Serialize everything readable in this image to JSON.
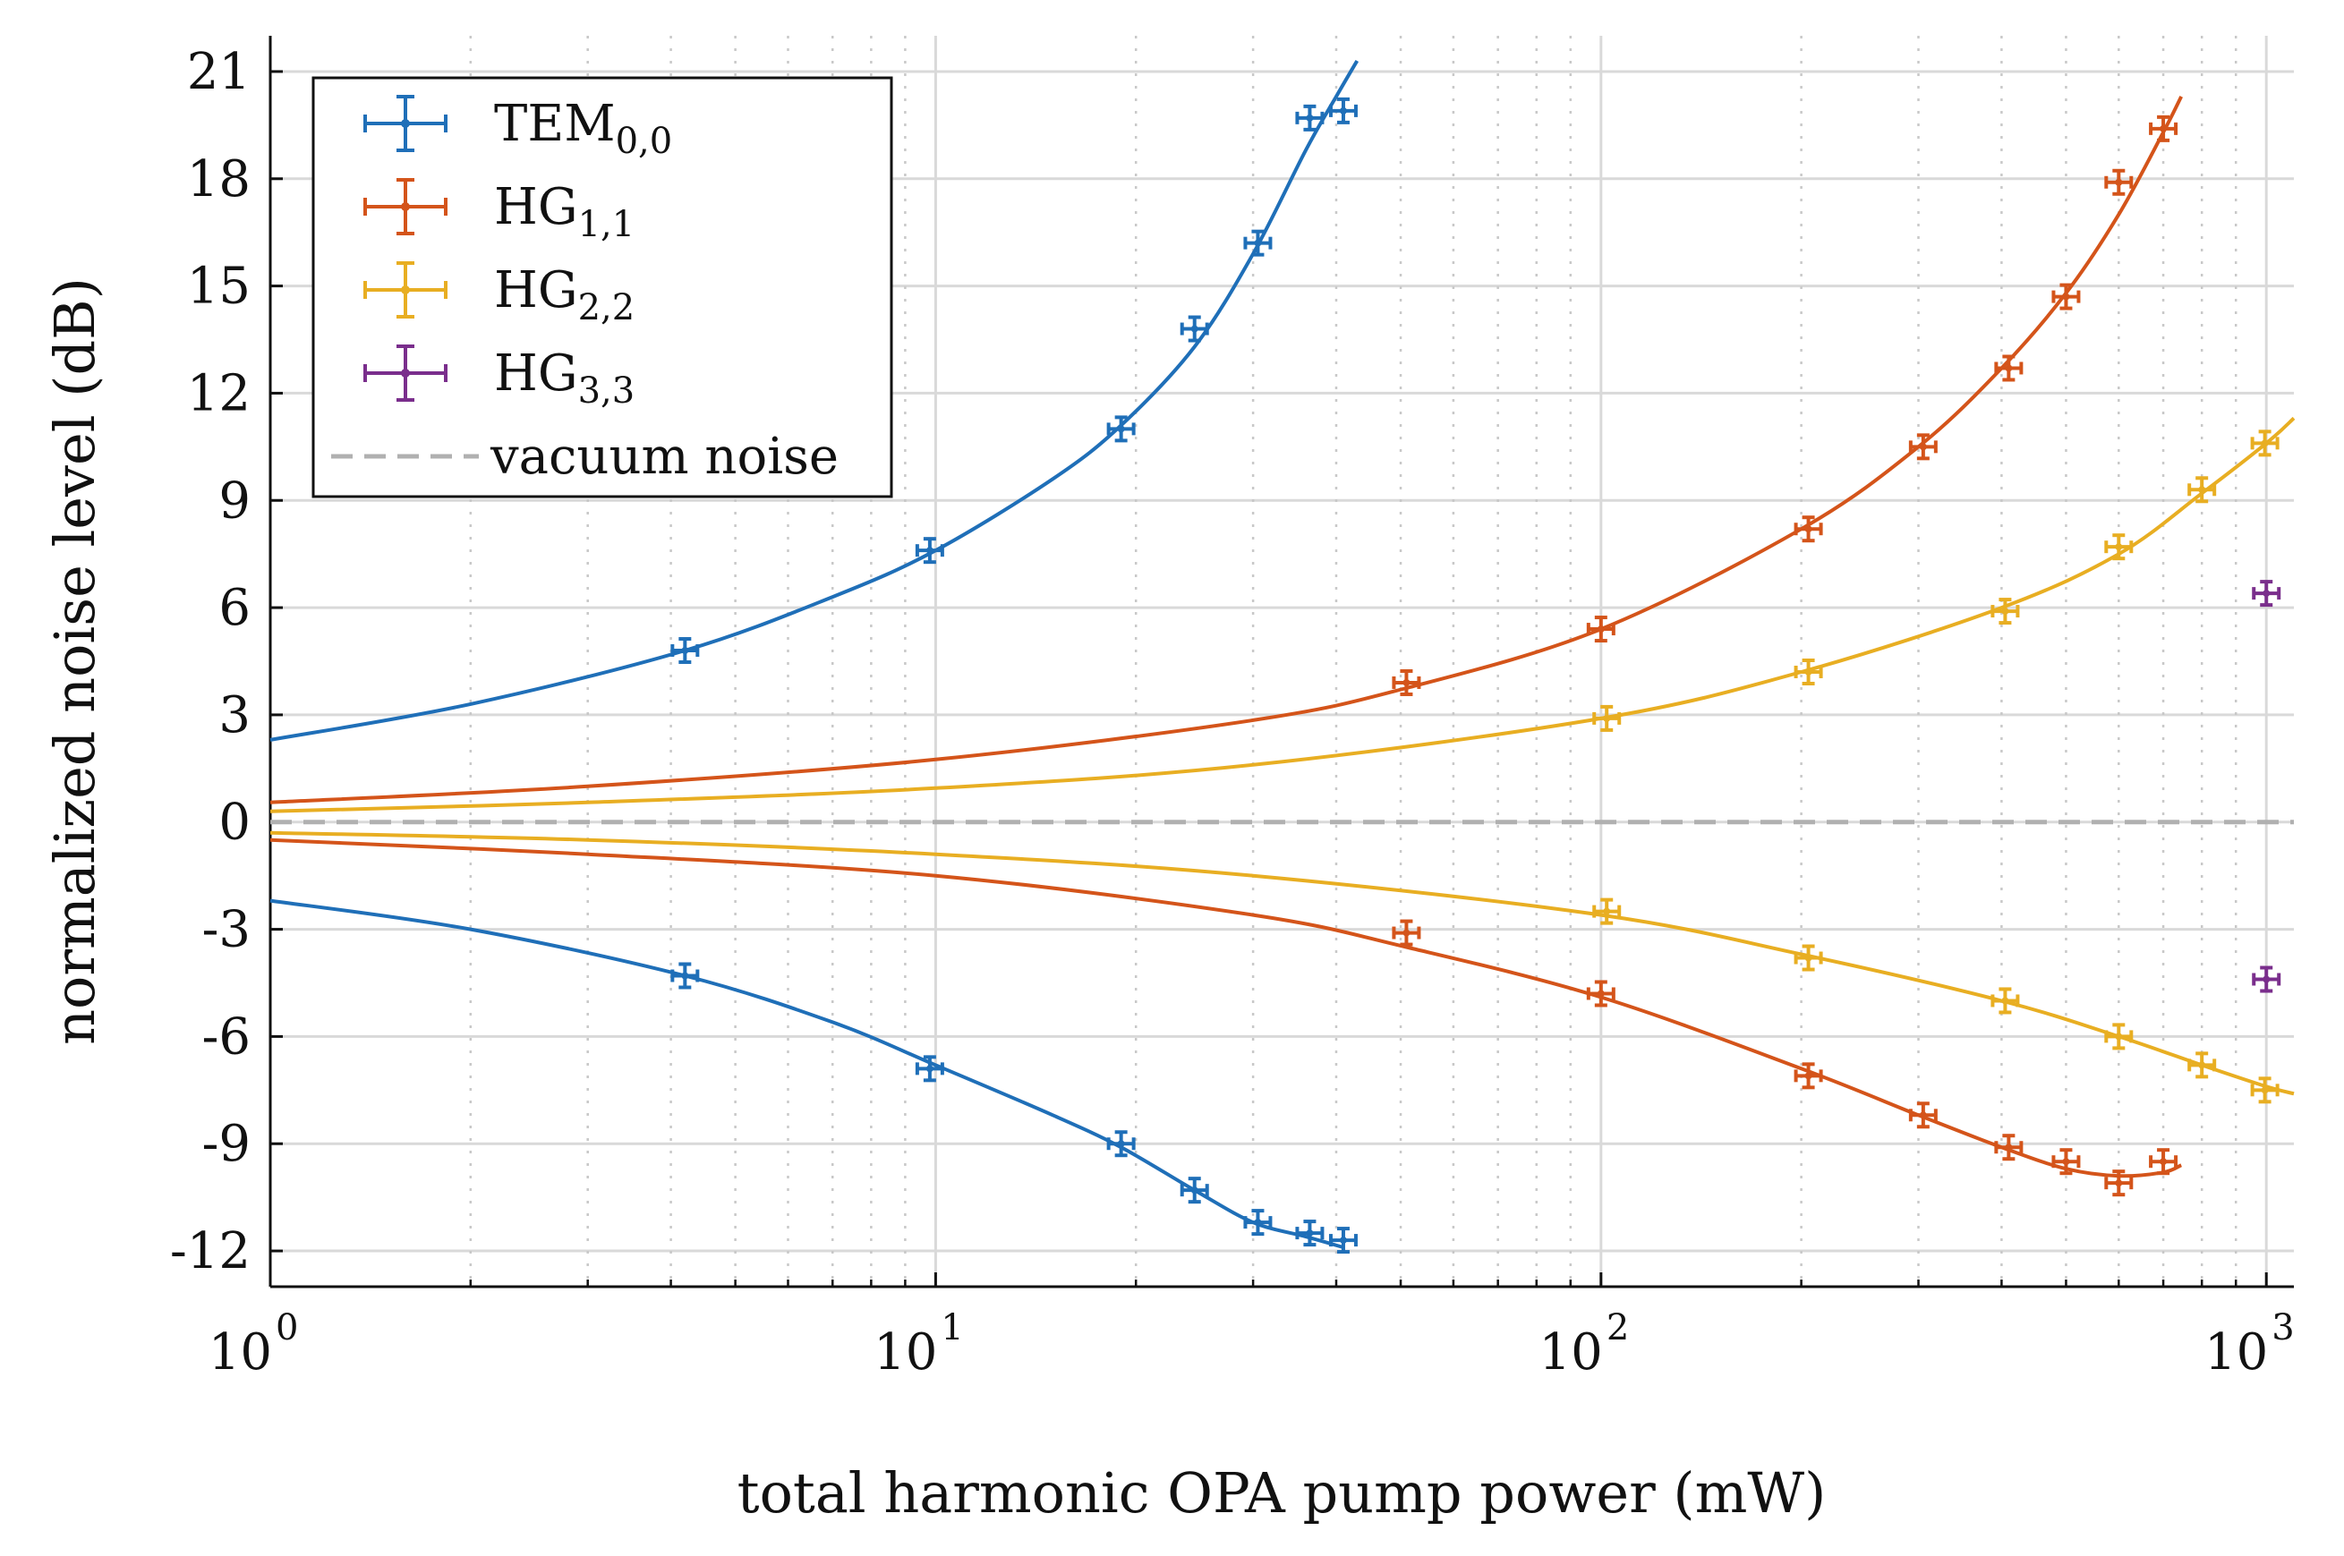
{
  "chart_data": {
    "type": "scatter",
    "title": "",
    "xlabel": "total harmonic OPA pump power (mW)",
    "ylabel": "normalized noise level (dB)",
    "xscale": "log",
    "xlim": [
      1,
      1100
    ],
    "ylim": [
      -13,
      22
    ],
    "xticks": [
      {
        "value": 1,
        "base": "10",
        "exp": "0"
      },
      {
        "value": 10,
        "base": "10",
        "exp": "1"
      },
      {
        "value": 100,
        "base": "10",
        "exp": "2"
      },
      {
        "value": 1000,
        "base": "10",
        "exp": "3"
      }
    ],
    "yticks": [
      {
        "value": 21,
        "label": "21"
      },
      {
        "value": 18,
        "label": "18"
      },
      {
        "value": 15,
        "label": "15"
      },
      {
        "value": 12,
        "label": "12"
      },
      {
        "value": 9,
        "label": "9"
      },
      {
        "value": 6,
        "label": "6"
      },
      {
        "value": 3,
        "label": "3"
      },
      {
        "value": 0,
        "label": "0"
      },
      {
        "value": -3,
        "label": "-3"
      },
      {
        "value": -6,
        "label": "-6"
      },
      {
        "value": -9,
        "label": "-9"
      },
      {
        "value": -12,
        "label": "-12"
      }
    ],
    "grid": true,
    "legend_position": "top-left",
    "legend": [
      {
        "base": "TEM",
        "sub": "0,0",
        "color": "#1f6fb8",
        "kind": "errorbar"
      },
      {
        "base": "HG",
        "sub": "1,1",
        "color": "#d4541a",
        "kind": "errorbar"
      },
      {
        "base": "HG",
        "sub": "2,2",
        "color": "#e8ae22",
        "kind": "errorbar"
      },
      {
        "base": "HG",
        "sub": "3,3",
        "color": "#7a2e8c",
        "kind": "errorbar"
      },
      {
        "base": "vacuum noise",
        "sub": "",
        "color": "#b0b0b0",
        "kind": "dashed"
      }
    ],
    "reference_line": {
      "name": "vacuum noise",
      "y": 0,
      "color": "#b0b0b0"
    },
    "series": [
      {
        "name": "TEM0,0",
        "color": "#1f6fb8",
        "anti_squeezing": {
          "x": [
            4.2,
            9.8,
            19,
            24.5,
            30.5,
            36.5,
            41
          ],
          "y": [
            4.8,
            7.6,
            11.0,
            13.8,
            16.2,
            19.7,
            19.9
          ]
        },
        "squeezing": {
          "x": [
            4.2,
            9.8,
            19,
            24.5,
            30.5,
            36.5,
            41
          ],
          "y": [
            -4.3,
            -6.9,
            -9.0,
            -10.3,
            -11.2,
            -11.5,
            -11.7
          ]
        },
        "fit_anti": {
          "x": [
            1,
            2,
            4.2,
            7,
            10,
            15,
            19,
            24.5,
            30,
            36,
            40,
            43
          ],
          "y": [
            2.3,
            3.3,
            4.8,
            6.3,
            7.6,
            9.6,
            11.1,
            13.3,
            15.9,
            18.8,
            20.3,
            21.3
          ]
        },
        "fit_squeeze": {
          "x": [
            1,
            2,
            4.2,
            7,
            10,
            15,
            19,
            24.5,
            30,
            36,
            41
          ],
          "y": [
            -2.2,
            -3.0,
            -4.3,
            -5.6,
            -6.8,
            -8.2,
            -9.1,
            -10.3,
            -11.2,
            -11.6,
            -11.9
          ]
        }
      },
      {
        "name": "HG1,1",
        "color": "#d4541a",
        "anti_squeezing": {
          "x": [
            51,
            100,
            205,
            305,
            410,
            500,
            600,
            700
          ],
          "y": [
            3.9,
            5.4,
            8.2,
            10.5,
            12.7,
            14.7,
            17.9,
            19.4
          ]
        },
        "squeezing": {
          "x": [
            51,
            100,
            205,
            305,
            410,
            500,
            600,
            700
          ],
          "y": [
            -3.1,
            -4.8,
            -7.1,
            -8.2,
            -9.1,
            -9.5,
            -10.1,
            -9.5
          ]
        },
        "fit_anti": {
          "x": [
            1,
            3,
            10,
            30,
            51,
            100,
            200,
            300,
            400,
            500,
            600,
            700,
            745
          ],
          "y": [
            0.55,
            1.0,
            1.75,
            2.85,
            3.75,
            5.4,
            8.2,
            10.5,
            12.7,
            14.8,
            17.0,
            19.3,
            20.3
          ]
        },
        "fit_squeeze": {
          "x": [
            1,
            3,
            10,
            30,
            51,
            100,
            200,
            300,
            400,
            500,
            600,
            700,
            745
          ],
          "y": [
            -0.5,
            -0.9,
            -1.5,
            -2.6,
            -3.5,
            -4.9,
            -6.9,
            -8.2,
            -9.1,
            -9.7,
            -9.9,
            -9.8,
            -9.6
          ]
        }
      },
      {
        "name": "HG2,2",
        "color": "#e8ae22",
        "anti_squeezing": {
          "x": [
            102,
            205,
            405,
            600,
            800,
            995
          ],
          "y": [
            2.9,
            4.2,
            5.9,
            7.7,
            9.3,
            10.6
          ]
        },
        "squeezing": {
          "x": [
            102,
            205,
            405,
            600,
            800,
            995
          ],
          "y": [
            -2.5,
            -3.8,
            -5.0,
            -6.0,
            -6.8,
            -7.5
          ]
        },
        "fit_anti": {
          "x": [
            1,
            3,
            10,
            30,
            100,
            200,
            400,
            600,
            800,
            1000,
            1100
          ],
          "y": [
            0.3,
            0.55,
            0.95,
            1.6,
            2.9,
            4.2,
            6.0,
            7.5,
            9.2,
            10.6,
            11.3
          ]
        },
        "fit_squeeze": {
          "x": [
            1,
            3,
            10,
            30,
            100,
            200,
            400,
            600,
            800,
            1000,
            1100
          ],
          "y": [
            -0.3,
            -0.5,
            -0.9,
            -1.5,
            -2.6,
            -3.7,
            -5.0,
            -6.0,
            -6.8,
            -7.4,
            -7.6
          ]
        }
      },
      {
        "name": "HG3,3",
        "color": "#7a2e8c",
        "anti_squeezing": {
          "x": [
            1000
          ],
          "y": [
            6.4
          ]
        },
        "squeezing": {
          "x": [
            1000
          ],
          "y": [
            -4.4
          ]
        }
      }
    ]
  }
}
